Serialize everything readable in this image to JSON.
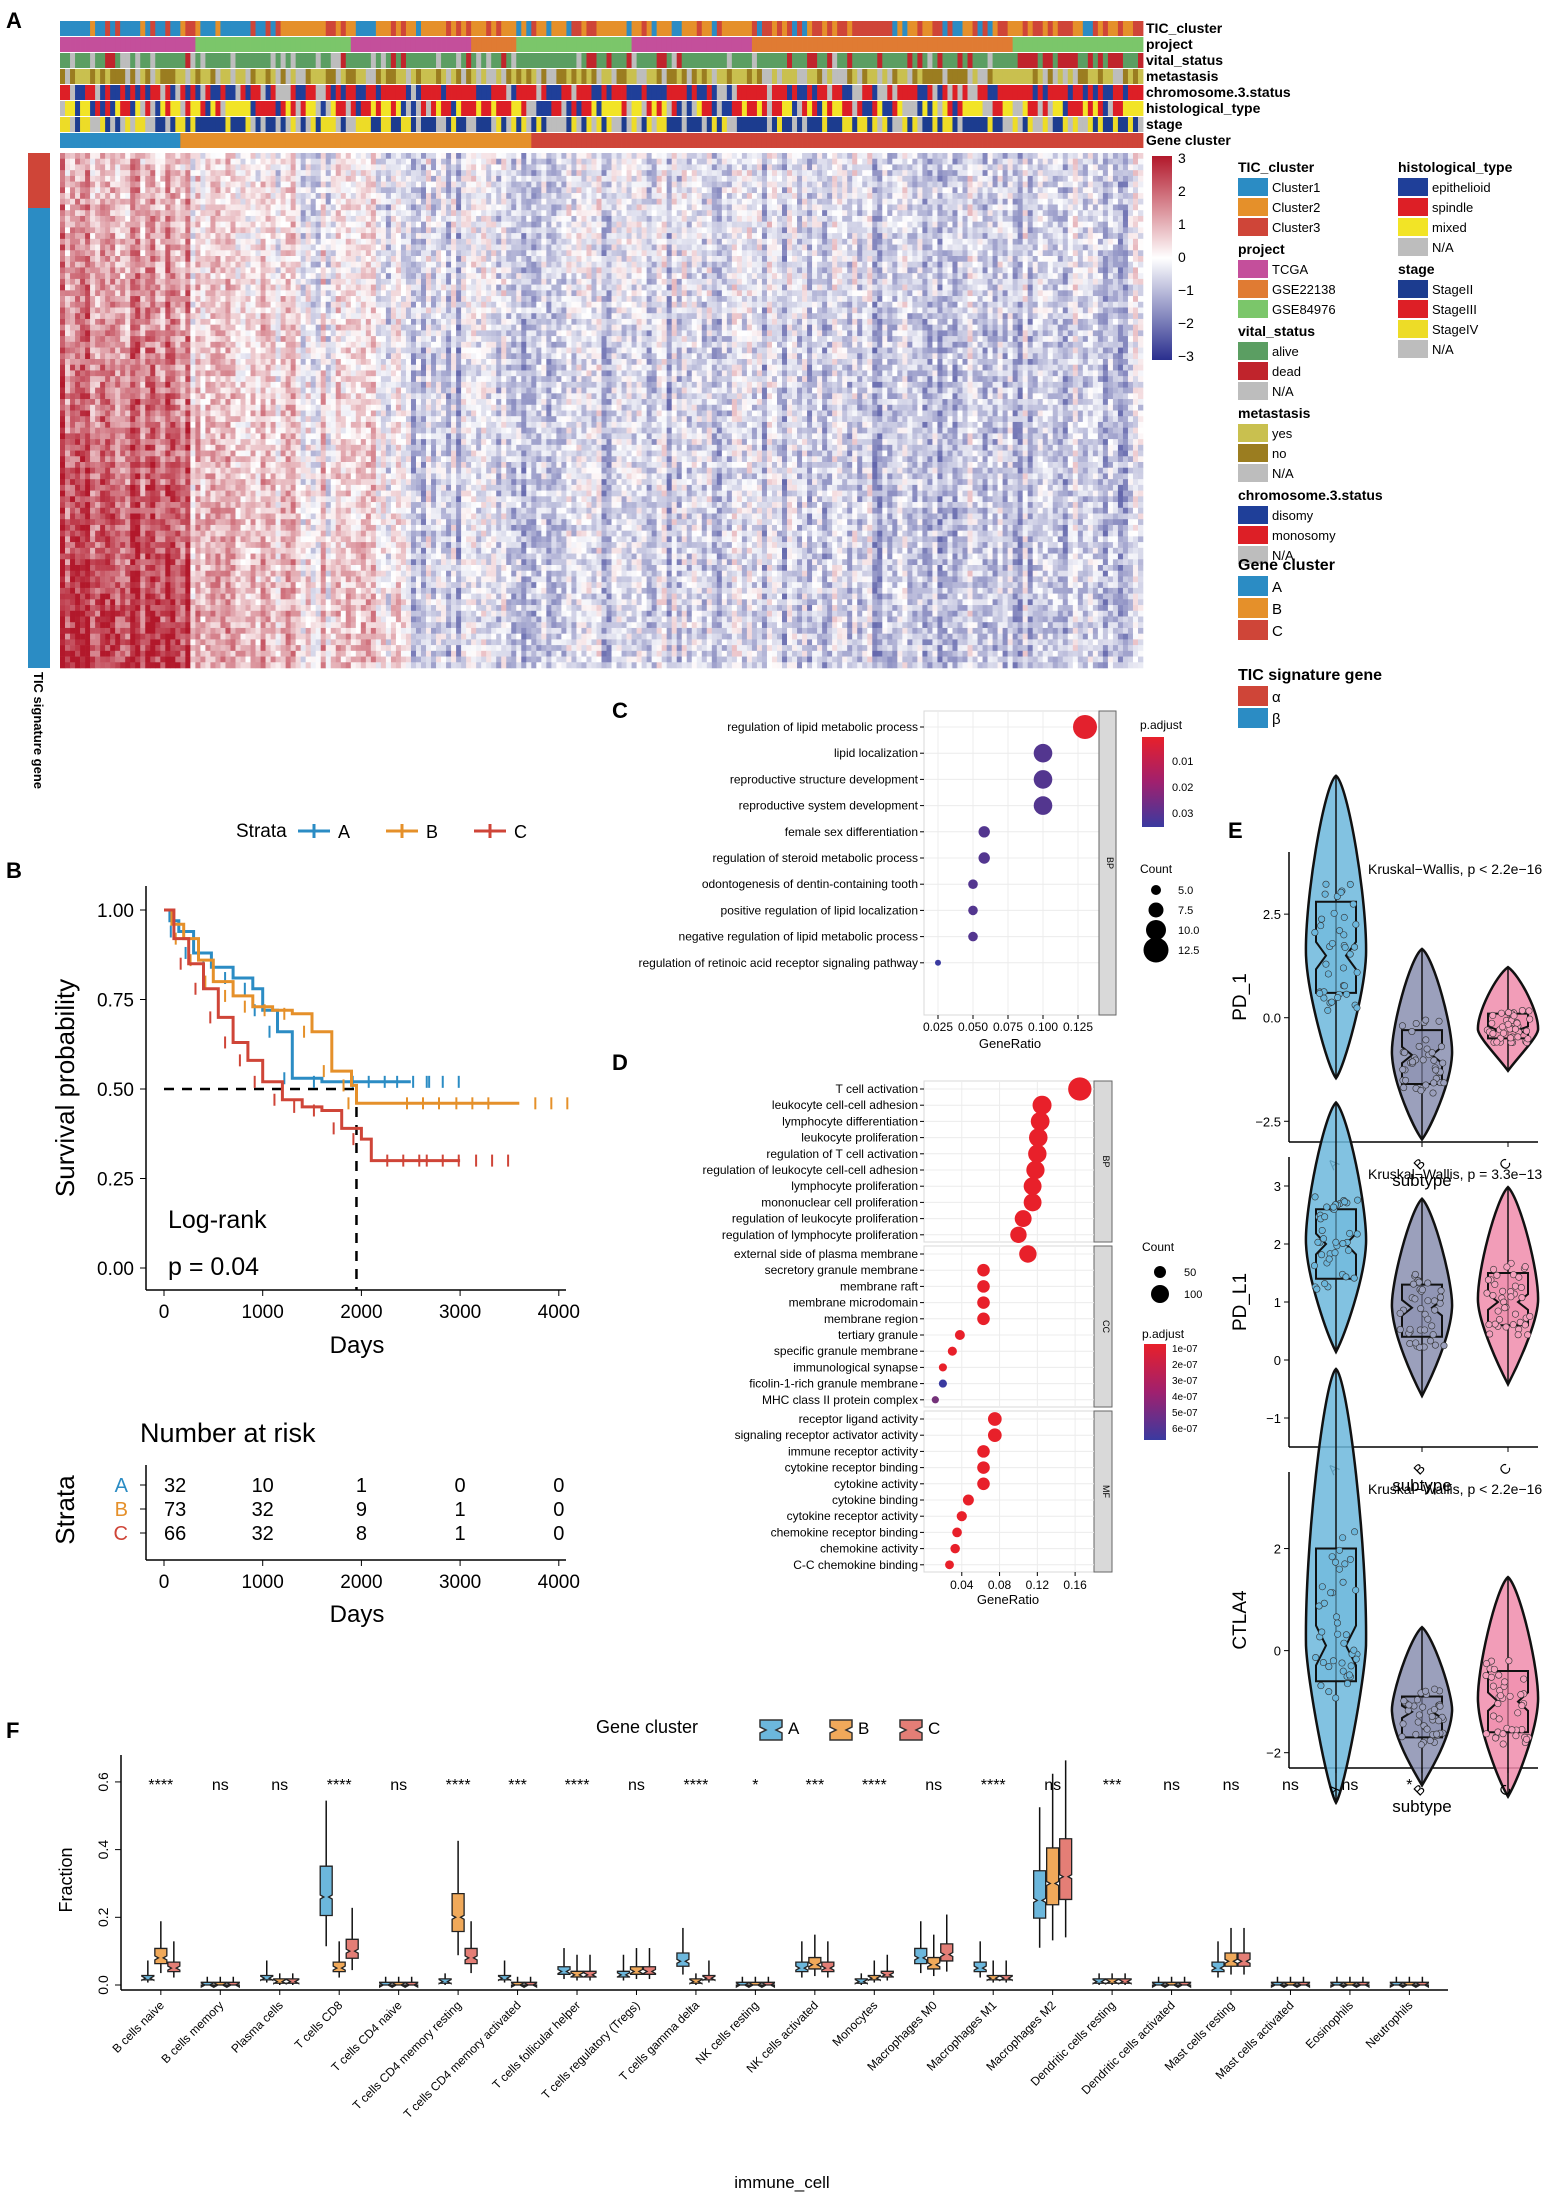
{
  "panels": {
    "A": "A",
    "B": "B",
    "C": "C",
    "D": "D",
    "E": "E",
    "F": "F"
  },
  "colors": {
    "cluster": [
      "#2b8cc4",
      "#e5902a",
      "#cf4538"
    ],
    "project": [
      "#c44f9b",
      "#e07b33",
      "#7bc66a"
    ],
    "vital": [
      "#5b9e62",
      "#c0242c",
      "#bdbdbd"
    ],
    "metastasis": [
      "#c9c04f",
      "#9b7d20",
      "#bdbdbd"
    ],
    "chromosome": [
      "#1f3f99",
      "#dd1f26",
      "#bdbdbd"
    ],
    "histology": [
      "#1f3f99",
      "#dd1f26",
      "#f2e426",
      "#bdbdbd"
    ],
    "stage": [
      "#1c3c8f",
      "#1c3c8f",
      "#eddc27",
      "#bdbdbd"
    ],
    "signature": [
      "#cf4538",
      "#2b8cc4"
    ],
    "heat_low": "#2a2f8e",
    "heat_high": "#b2182b"
  },
  "heatmap": {
    "annotation_tracks": [
      "TIC_cluster",
      "project",
      "vital_status",
      "metastasis",
      "chromosome.3.status",
      "histological_type",
      "stage",
      "Gene cluster"
    ],
    "row_label": "TIC signature gene",
    "scale_ticks": [
      "3",
      "2",
      "1",
      "0",
      "−1",
      "−2",
      "−3"
    ],
    "legend_blocks": [
      {
        "title": "TIC_cluster",
        "items": [
          "Cluster1",
          "Cluster2",
          "Cluster3"
        ]
      },
      {
        "title": "project",
        "items": [
          "TCGA",
          "GSE22138",
          "GSE84976"
        ]
      },
      {
        "title": "vital_status",
        "items": [
          "alive",
          "dead",
          "N/A"
        ]
      },
      {
        "title": "metastasis",
        "items": [
          "yes",
          "no",
          "N/A"
        ]
      },
      {
        "title": "chromosome.3.status",
        "items": [
          "disomy",
          "monosomy",
          "N/A"
        ]
      },
      {
        "title": "Gene cluster",
        "items": [
          "A",
          "B",
          "C"
        ]
      },
      {
        "title": "TIC signature gene",
        "items": [
          "α",
          "β"
        ]
      },
      {
        "title": "histological_type",
        "items": [
          "epithelioid",
          "spindle",
          "mixed",
          "N/A"
        ]
      },
      {
        "title": "stage",
        "items": [
          "StageII",
          "StageIII",
          "StageIV",
          "N/A"
        ]
      }
    ]
  },
  "chart_data": [
    {
      "type": "line",
      "id": "survival",
      "title": "",
      "legend_title": "Strata",
      "xlabel": "Days",
      "ylabel": "Survival probability",
      "xlim": [
        0,
        4000
      ],
      "ylim": [
        0,
        1
      ],
      "xticks": [
        "0",
        "1000",
        "2000",
        "3000",
        "4000"
      ],
      "yticks": [
        "0.00",
        "0.25",
        "0.50",
        "0.75",
        "1.00"
      ],
      "series": [
        {
          "name": "A",
          "color": "#2b8cc4",
          "x": [
            0,
            60,
            150,
            300,
            480,
            700,
            900,
            1000,
            1150,
            1300,
            1600,
            1750,
            2200,
            2500
          ],
          "y": [
            1,
            0.97,
            0.94,
            0.88,
            0.84,
            0.81,
            0.78,
            0.72,
            0.66,
            0.53,
            0.52,
            0.52,
            0.52,
            0.52
          ]
        },
        {
          "name": "B",
          "color": "#e5902a",
          "x": [
            0,
            80,
            200,
            350,
            500,
            700,
            900,
            1100,
            1300,
            1500,
            1700,
            1900,
            1950,
            2300,
            2800,
            3600
          ],
          "y": [
            1,
            0.96,
            0.92,
            0.86,
            0.8,
            0.76,
            0.73,
            0.72,
            0.71,
            0.66,
            0.55,
            0.51,
            0.46,
            0.46,
            0.46,
            0.46
          ]
        },
        {
          "name": "C",
          "color": "#cf4538",
          "x": [
            0,
            100,
            250,
            400,
            550,
            700,
            850,
            1000,
            1200,
            1400,
            1600,
            1800,
            2000,
            2100,
            2500,
            3000
          ],
          "y": [
            1,
            0.92,
            0.85,
            0.78,
            0.7,
            0.63,
            0.58,
            0.52,
            0.47,
            0.45,
            0.44,
            0.39,
            0.36,
            0.3,
            0.3,
            0.3
          ]
        }
      ],
      "annotations": [
        "Log-rank",
        "p = 0.04"
      ],
      "median_cut_days": 1950
    },
    {
      "type": "table",
      "id": "risk_table",
      "title": "Number at risk",
      "xlabel": "Days",
      "ylabel": "Strata",
      "xticks": [
        "0",
        "1000",
        "2000",
        "3000",
        "4000"
      ],
      "rows": [
        {
          "name": "A",
          "color": "#2b8cc4",
          "values": [
            "32",
            "10",
            "1",
            "0",
            "0"
          ]
        },
        {
          "name": "B",
          "color": "#e5902a",
          "values": [
            "73",
            "32",
            "9",
            "1",
            "0"
          ]
        },
        {
          "name": "C",
          "color": "#cf4538",
          "values": [
            "66",
            "32",
            "8",
            "1",
            "0"
          ]
        }
      ]
    },
    {
      "type": "scatter",
      "id": "go_bp",
      "title": "",
      "xlabel": "GeneRatio",
      "xlim": [
        0.015,
        0.14
      ],
      "xticks": [
        "0.025",
        "0.050",
        "0.075",
        "0.100",
        "0.125"
      ],
      "facet": "BP",
      "legend_padjust_title": "p.adjust",
      "legend_padjust_ticks": [
        "0.01",
        "0.02",
        "0.03"
      ],
      "legend_count_title": "Count",
      "legend_count_ticks": [
        "5.0",
        "7.5",
        "10.0",
        "12.5"
      ],
      "terms": [
        "regulation of lipid metabolic process",
        "lipid localization",
        "reproductive structure development",
        "reproductive system development",
        "female sex differentiation",
        "regulation of steroid metabolic process",
        "odontogenesis of dentin-containing tooth",
        "positive regulation of lipid localization",
        "negative regulation of lipid metabolic process",
        "regulation of retinoic acid receptor signaling pathway"
      ],
      "gene_ratio": [
        0.13,
        0.1,
        0.1,
        0.1,
        0.058,
        0.058,
        0.05,
        0.05,
        0.05,
        0.025
      ],
      "count": [
        13,
        10,
        10,
        10,
        6,
        6,
        5,
        5,
        5,
        3
      ],
      "p_adjust": [
        0.001,
        0.03,
        0.03,
        0.03,
        0.03,
        0.03,
        0.03,
        0.03,
        0.03,
        0.035
      ]
    },
    {
      "type": "scatter",
      "id": "go_all",
      "title": "",
      "xlabel": "GeneRatio",
      "xlim": [
        0.0,
        0.18
      ],
      "xticks": [
        "0.04",
        "0.08",
        "0.12",
        "0.16"
      ],
      "legend_count_title": "Count",
      "legend_count_ticks": [
        "50",
        "100"
      ],
      "legend_padjust_title": "p.adjust",
      "legend_padjust_ticks": [
        "1e-07",
        "2e-07",
        "3e-07",
        "4e-07",
        "5e-07",
        "6e-07"
      ],
      "facets": [
        {
          "name": "BP",
          "terms": [
            "T cell activation",
            "leukocyte cell-cell adhesion",
            "lymphocyte differentiation",
            "leukocyte proliferation",
            "regulation of T cell activation",
            "regulation of leukocyte cell-cell adhesion",
            "lymphocyte proliferation",
            "mononuclear cell proliferation",
            "regulation of leukocyte proliferation",
            "regulation of lymphocyte proliferation"
          ],
          "gene_ratio": [
            0.165,
            0.125,
            0.123,
            0.121,
            0.12,
            0.118,
            0.115,
            0.115,
            0.105,
            0.1
          ],
          "count": [
            140,
            105,
            103,
            101,
            100,
            99,
            96,
            96,
            88,
            84
          ],
          "p_adjust": [
            1e-10,
            1e-10,
            1e-10,
            1e-10,
            1e-10,
            1e-10,
            1e-10,
            1e-10,
            1e-10,
            1e-10
          ]
        },
        {
          "name": "CC",
          "terms": [
            "external side of plasma membrane",
            "secretory granule membrane",
            "membrane raft",
            "membrane microdomain",
            "membrane region",
            "tertiary granule",
            "specific granule membrane",
            "immunological synapse",
            "ficolin-1-rich granule membrane",
            "MHC class II protein complex"
          ],
          "gene_ratio": [
            0.11,
            0.063,
            0.063,
            0.063,
            0.063,
            0.038,
            0.03,
            0.02,
            0.02,
            0.012
          ],
          "count": [
            92,
            53,
            53,
            53,
            53,
            32,
            25,
            17,
            17,
            10
          ],
          "p_adjust": [
            1e-10,
            1e-10,
            1e-10,
            1e-10,
            1e-10,
            1e-10,
            1e-10,
            1e-10,
            6e-07,
            4e-07
          ]
        },
        {
          "name": "MF",
          "terms": [
            "receptor ligand activity",
            "signaling receptor activator activity",
            "immune receptor activity",
            "cytokine receptor binding",
            "cytokine activity",
            "cytokine binding",
            "cytokine receptor activity",
            "chemokine receptor binding",
            "chemokine activity",
            "C-C chemokine binding"
          ],
          "gene_ratio": [
            0.075,
            0.075,
            0.063,
            0.063,
            0.063,
            0.047,
            0.04,
            0.035,
            0.033,
            0.027
          ],
          "count": [
            62,
            62,
            53,
            53,
            53,
            40,
            34,
            30,
            28,
            23
          ],
          "p_adjust": [
            1e-10,
            1e-10,
            1e-10,
            1e-10,
            1e-10,
            1e-10,
            1e-10,
            1e-10,
            1e-10,
            1e-10
          ]
        }
      ]
    },
    {
      "type": "scatter",
      "id": "violin_pd1",
      "xlabel": "subtype",
      "ylabel": "PD_1",
      "annotation": "Kruskal−Wallis, p < 2.2e−16",
      "ylim": [
        -3,
        4
      ],
      "yticks": [
        "2.5",
        "0.0",
        "−2.5"
      ],
      "categories": [
        "A",
        "B",
        "C"
      ],
      "medians": [
        1.5,
        -0.9,
        -0.3
      ],
      "q1": [
        0.6,
        -1.6,
        -0.5
      ],
      "q3": [
        2.8,
        -0.3,
        0.1
      ]
    },
    {
      "type": "scatter",
      "id": "violin_pdl1",
      "xlabel": "subtype",
      "ylabel": "PD_L1",
      "annotation": "Kruskal−Wallis, p = 3.3e−13",
      "ylim": [
        -1.5,
        3.5
      ],
      "yticks": [
        "3",
        "2",
        "1",
        "0",
        "−1"
      ],
      "categories": [
        "A",
        "B",
        "C"
      ],
      "medians": [
        2.0,
        0.9,
        1.0
      ],
      "q1": [
        1.4,
        0.4,
        0.6
      ],
      "q3": [
        2.6,
        1.3,
        1.5
      ]
    },
    {
      "type": "scatter",
      "id": "violin_ctla4",
      "xlabel": "subtype",
      "ylabel": "CTLA4",
      "annotation": "Kruskal−Wallis, p < 2.2e−16",
      "ylim": [
        -2.3,
        3.5
      ],
      "yticks": [
        "2",
        "0",
        "−2"
      ],
      "categories": [
        "A",
        "B",
        "C"
      ],
      "medians": [
        0.1,
        -1.2,
        -1.0
      ],
      "q1": [
        -0.6,
        -1.7,
        -1.6
      ],
      "q3": [
        2.0,
        -0.9,
        -0.4
      ]
    },
    {
      "type": "bar",
      "id": "immune_fraction",
      "legend_title": "Gene cluster",
      "legend_items": [
        "A",
        "B",
        "C"
      ],
      "xlabel": "immune_cell",
      "ylabel": "Fraction",
      "ylim": [
        0,
        0.65
      ],
      "yticks": [
        "0.0",
        "0.2",
        "0.4",
        "0.6"
      ],
      "categories": [
        "B cells naive",
        "B cells memory",
        "Plasma cells",
        "T cells CD8",
        "T cells CD4 naive",
        "T cells CD4 memory resting",
        "T cells CD4 memory activated",
        "T cells follicular helper",
        "T cells regulatory (Tregs)",
        "T cells gamma delta",
        "NK cells resting",
        "NK cells activated",
        "Monocytes",
        "Macrophages M0",
        "Macrophages M1",
        "Macrophages M2",
        "Dendritic cells resting",
        "Dendritic cells activated",
        "Mast cells resting",
        "Mast cells activated",
        "Eosinophils",
        "Neutrophils"
      ],
      "significance": [
        "****",
        "ns",
        "ns",
        "****",
        "ns",
        "****",
        "***",
        "****",
        "ns",
        "****",
        "*",
        "***",
        "****",
        "ns",
        "****",
        "ns",
        "***",
        "ns",
        "ns",
        "ns",
        "ns",
        "*"
      ],
      "series": [
        {
          "name": "A",
          "medians": [
            0.02,
            0.0,
            0.02,
            0.26,
            0.0,
            0.01,
            0.02,
            0.04,
            0.03,
            0.07,
            0.0,
            0.05,
            0.01,
            0.08,
            0.05,
            0.25,
            0.01,
            0.0,
            0.05,
            0.0,
            0.0,
            0.0
          ]
        },
        {
          "name": "B",
          "medians": [
            0.08,
            0.0,
            0.01,
            0.05,
            0.0,
            0.2,
            0.0,
            0.03,
            0.04,
            0.01,
            0.0,
            0.06,
            0.02,
            0.06,
            0.02,
            0.3,
            0.01,
            0.0,
            0.07,
            0.0,
            0.0,
            0.0
          ]
        },
        {
          "name": "C",
          "medians": [
            0.05,
            0.0,
            0.01,
            0.1,
            0.0,
            0.08,
            0.0,
            0.03,
            0.04,
            0.02,
            0.0,
            0.05,
            0.03,
            0.09,
            0.02,
            0.32,
            0.01,
            0.0,
            0.07,
            0.0,
            0.0,
            0.0
          ]
        }
      ]
    }
  ]
}
